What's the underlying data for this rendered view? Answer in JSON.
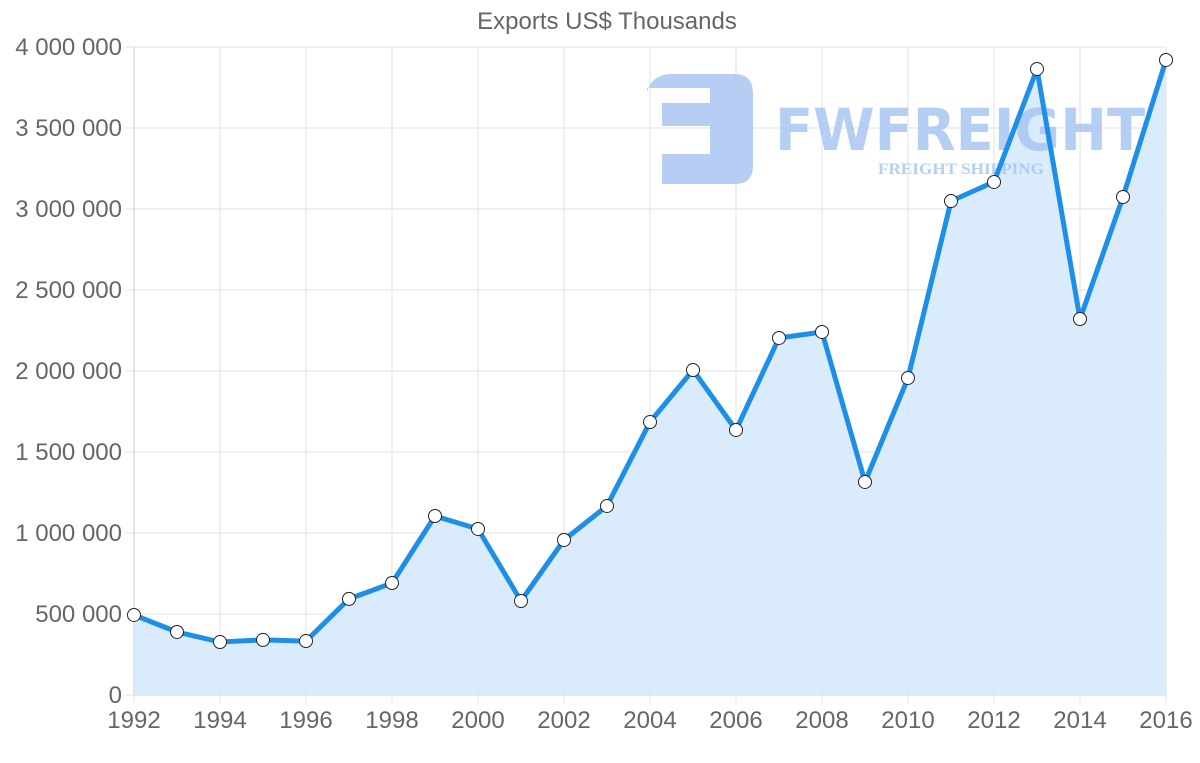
{
  "chart_data": {
    "type": "area",
    "title": "Exports US$ Thousands",
    "xlabel": "",
    "ylabel": "",
    "x": [
      1992,
      1993,
      1994,
      1995,
      1996,
      1997,
      1998,
      1999,
      2000,
      2001,
      2002,
      2003,
      2004,
      2005,
      2006,
      2007,
      2008,
      2009,
      2010,
      2011,
      2012,
      2013,
      2014,
      2015,
      2016
    ],
    "series": [
      {
        "name": "Exports US$ Thousands",
        "values": [
          494000,
          389000,
          327000,
          340000,
          333000,
          593000,
          691000,
          1105000,
          1025000,
          580000,
          957000,
          1167000,
          1685000,
          2006000,
          1636000,
          2204000,
          2241000,
          1315000,
          1957000,
          3049000,
          3167000,
          3864000,
          2321000,
          3074000,
          3920000
        ]
      }
    ],
    "ylim": [
      0,
      4000000
    ],
    "yticks": [
      0,
      500000,
      1000000,
      1500000,
      2000000,
      2500000,
      3000000,
      3500000,
      4000000
    ],
    "ytick_labels": [
      "0",
      "500 000",
      "1 000 000",
      "1 500 000",
      "2 000 000",
      "2 500 000",
      "3 000 000",
      "3 500 000",
      "4 000 000"
    ],
    "xtick_labels": [
      "1992",
      "1994",
      "1996",
      "1998",
      "2000",
      "2002",
      "2004",
      "2006",
      "2008",
      "2010",
      "2012",
      "2014",
      "2016"
    ],
    "grid": true,
    "legend": "none",
    "colors": {
      "line": "#1e8fe8",
      "fill": "#d6eafc",
      "point_fill": "#ffffff",
      "point_stroke": "#222222",
      "grid": "#e2e2e2",
      "axis_text": "#666666"
    }
  },
  "watermark": {
    "brand": "FWFREIGHT",
    "tagline": "FREIGHT SHIPPING",
    "color": "#a9c6f2"
  }
}
